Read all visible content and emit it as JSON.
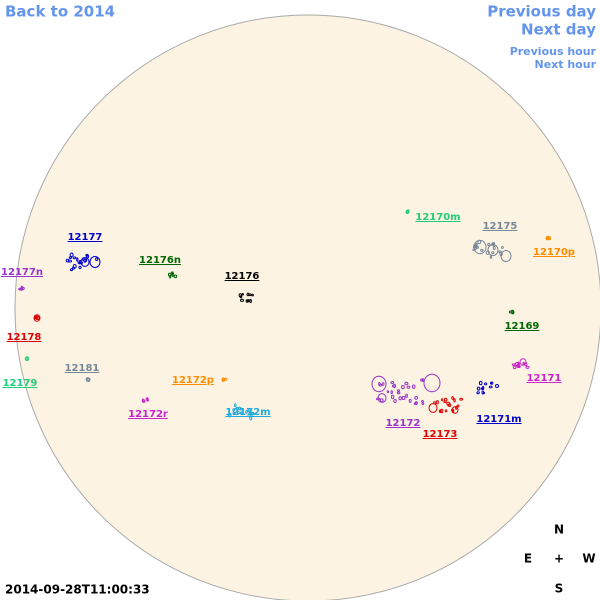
{
  "navigation": {
    "back": "Back to 2014",
    "previous_day": "Previous day",
    "next_day": "Next day",
    "previous_hour": "Previous hour",
    "next_hour": "Next hour"
  },
  "regions": [
    {
      "label": "12177",
      "color": "#0000cc"
    },
    {
      "label": "12176n",
      "color": "#006600"
    },
    {
      "label": "12176",
      "color": "#000000"
    },
    {
      "label": "12177n",
      "color": "#9933cc"
    },
    {
      "label": "12178",
      "color": "#dd0000"
    },
    {
      "label": "12179",
      "color": "#22cc77"
    },
    {
      "label": "12181",
      "color": "#778899"
    },
    {
      "label": "12172p",
      "color": "#ff8c00"
    },
    {
      "label": "12172r",
      "color": "#cc22cc"
    },
    {
      "label": "12172m",
      "color": "#22aadd"
    },
    {
      "label": "12170m",
      "color": "#22cc77"
    },
    {
      "label": "12175",
      "color": "#778899"
    },
    {
      "label": "12170p",
      "color": "#ff8c00"
    },
    {
      "label": "12169",
      "color": "#006600"
    },
    {
      "label": "12171",
      "color": "#cc22cc"
    },
    {
      "label": "12171m",
      "color": "#0000cc"
    },
    {
      "label": "12172",
      "color": "#9933cc"
    },
    {
      "label": "12173",
      "color": "#dd0000"
    }
  ],
  "timestamp": "2014-09-28T11:00:33",
  "compass": {
    "north": "N",
    "east": "E",
    "center": "+",
    "west": "W",
    "south": "S"
  }
}
